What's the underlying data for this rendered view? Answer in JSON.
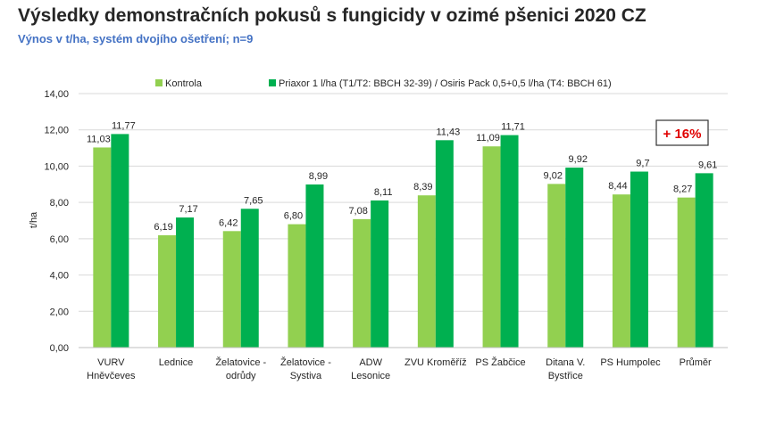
{
  "header": {
    "title": "Výsledky demonstračních pokusů s fungicidy v ozimé pšenici 2020 CZ",
    "subtitle": "Výnos v t/ha, systém dvojího ošetření; n=9"
  },
  "colors": {
    "kontrola": "#92d050",
    "priaxor": "#00b050",
    "axis": "#bfbfbf",
    "grid": "#d9d9d9",
    "text": "#262626",
    "callout_border": "#333333",
    "callout_text": "#e00000"
  },
  "callout": {
    "text": "+ 16%"
  },
  "chart_data": {
    "type": "bar",
    "title": "",
    "ylabel": "t/ha",
    "xlabel": "",
    "ylim": [
      0,
      14
    ],
    "yticks": [
      0,
      2,
      4,
      6,
      8,
      10,
      12,
      14
    ],
    "yticks_labels": [
      "0,00",
      "2,00",
      "4,00",
      "6,00",
      "8,00",
      "10,00",
      "12,00",
      "14,00"
    ],
    "grid": true,
    "legend_position": "top",
    "categories": [
      [
        "VURV",
        "Hněvčeves"
      ],
      [
        "Lednice"
      ],
      [
        "Želatovice -",
        "odrůdy"
      ],
      [
        "Želatovice -",
        "Systiva"
      ],
      [
        "ADW",
        "Lesonice"
      ],
      [
        "ZVU Kroměříž"
      ],
      [
        "PS Žabčice"
      ],
      [
        "Ditana V.",
        "Bystřice"
      ],
      [
        "PS Humpolec"
      ],
      [
        "Průměr"
      ]
    ],
    "series": [
      {
        "name": "Kontrola",
        "values": [
          11.03,
          6.19,
          6.42,
          6.8,
          7.08,
          8.39,
          11.09,
          9.02,
          8.44,
          8.27
        ],
        "labels": [
          "11,03",
          "6,19",
          "6,42",
          "6,80",
          "7,08",
          "8,39",
          "11,09",
          "9,02",
          "8,44",
          "8,27"
        ]
      },
      {
        "name": "Priaxor 1 l/ha (T1/T2: BBCH 32-39) / Osiris Pack 0,5+0,5 l/ha (T4: BBCH 61)",
        "values": [
          11.77,
          7.17,
          7.65,
          8.99,
          8.11,
          11.43,
          11.71,
          9.92,
          9.7,
          9.61
        ],
        "labels": [
          "11,77",
          "7,17",
          "7,65",
          "8,99",
          "8,11",
          "11,43",
          "11,71",
          "9,92",
          "9,7",
          "9,61"
        ]
      }
    ]
  }
}
